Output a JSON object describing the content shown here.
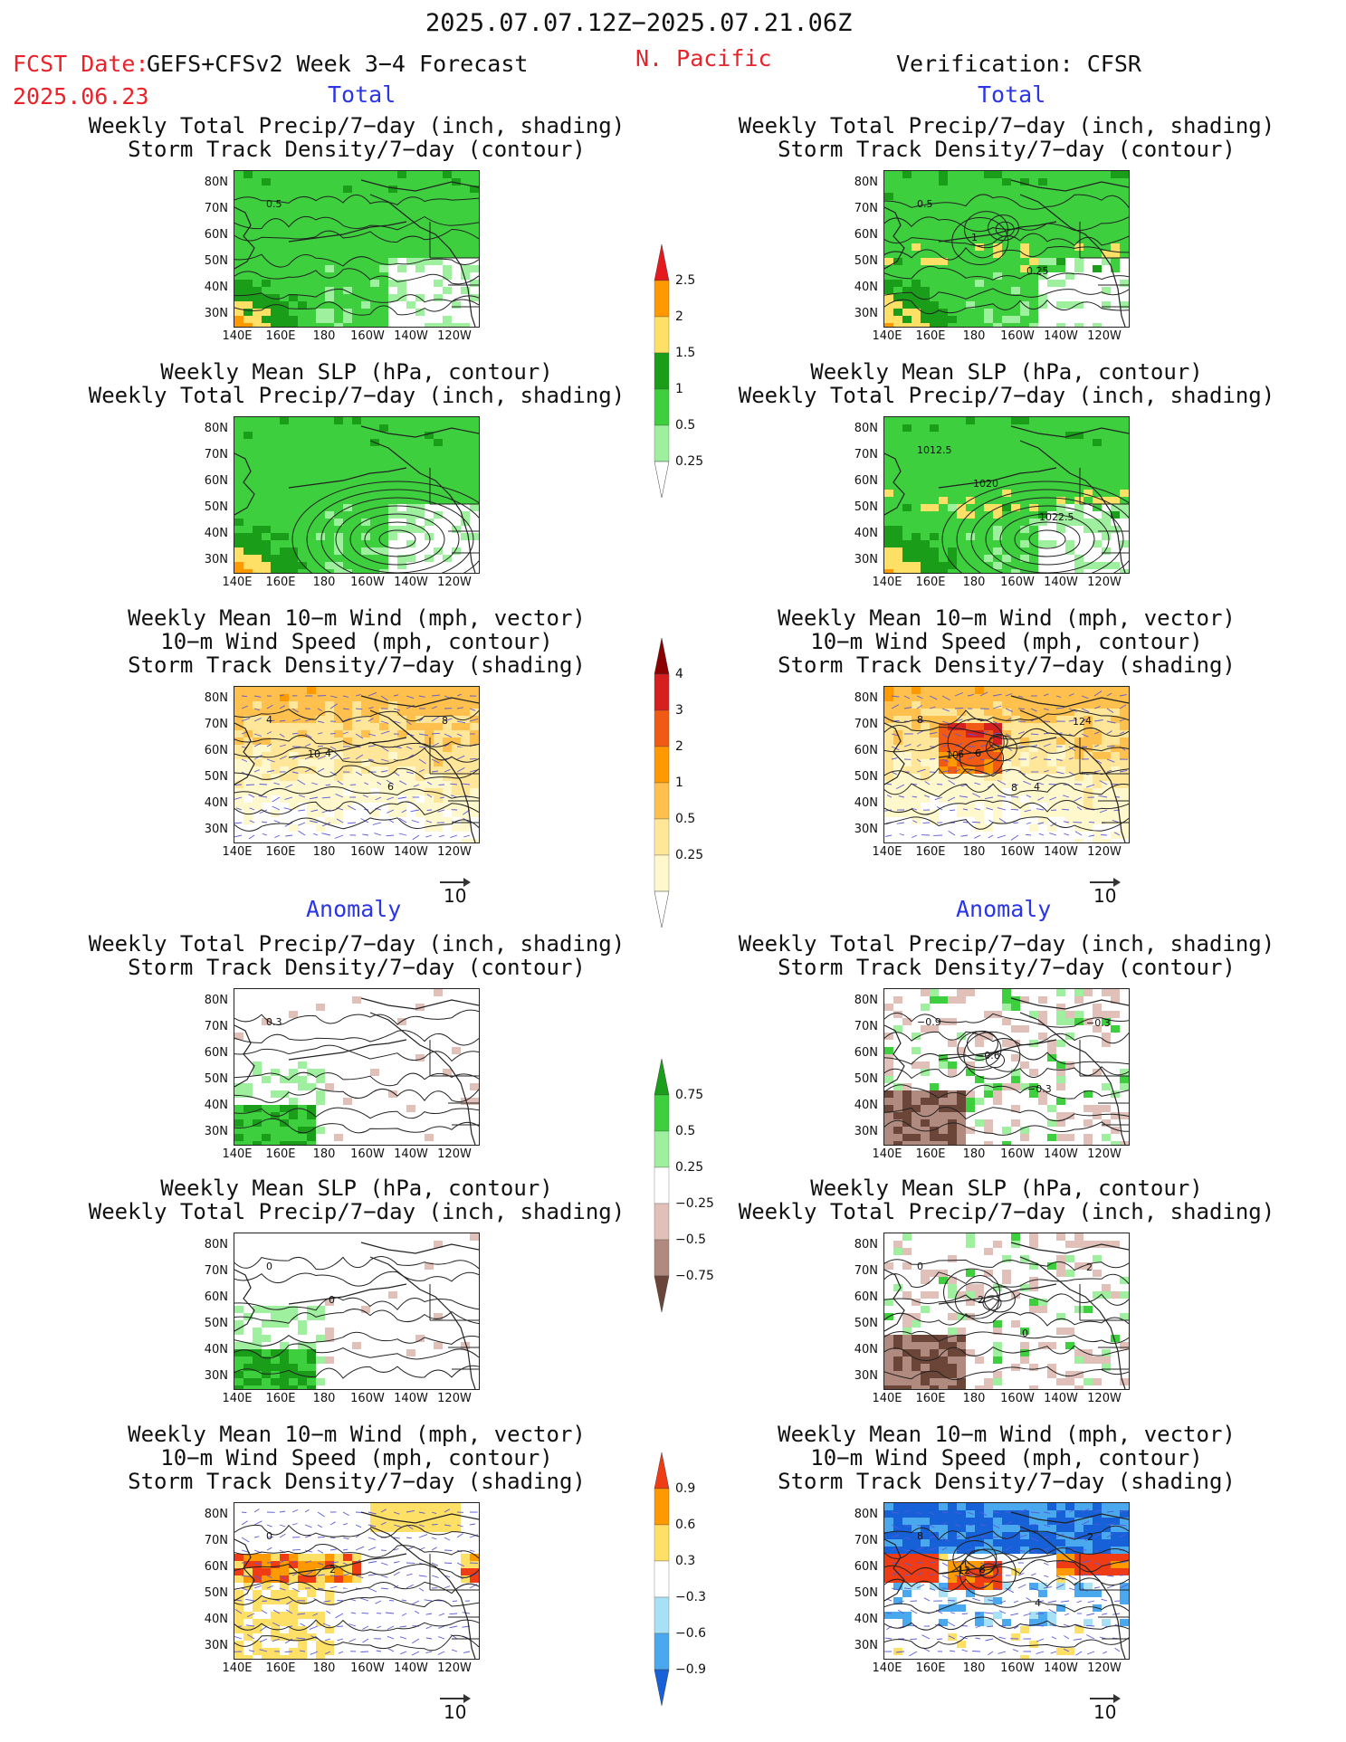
{
  "header": {
    "date_range": "2025.07.07.12Z−2025.07.21.06Z",
    "fcst_label": "FCST Date:",
    "model": "GEFS+CFSv2 Week 3−4 Forecast",
    "fcst_date": "2025.06.23",
    "region": "N. Pacific",
    "verification": "Verification: CFSR"
  },
  "sections": {
    "total": "Total",
    "anomaly": "Anomaly"
  },
  "titles": {
    "precip_storm": [
      "Weekly Total Precip/7−day (inch, shading)",
      "Storm Track Density/7−day (contour)"
    ],
    "slp_precip": [
      "Weekly Mean SLP (hPa, contour)",
      "Weekly Total Precip/7−day (inch, shading)"
    ],
    "wind_storm": [
      "Weekly Mean 10−m Wind (mph, vector)",
      "10−m Wind Speed (mph, contour)",
      "Storm Track Density/7−day (shading)"
    ]
  },
  "axes": {
    "lat_ticks": [
      "80N",
      "70N",
      "60N",
      "50N",
      "40N",
      "30N"
    ],
    "lon_ticks": [
      "140E",
      "160E",
      "180",
      "160W",
      "140W",
      "120W"
    ]
  },
  "vector_ref": "10",
  "colorbars": {
    "precip_total": {
      "labels": [
        "2.5",
        "2",
        "1.5",
        "1",
        "0.5",
        "0.25"
      ],
      "colors": [
        "#e41a1c",
        "#ff9900",
        "#ffe066",
        "#1a9e1a",
        "#3ecf3e",
        "#9ef09e",
        "#ffffff"
      ]
    },
    "storm_total": {
      "labels": [
        "4",
        "3",
        "2",
        "1",
        "0.5",
        "0.25"
      ],
      "colors": [
        "#8b0000",
        "#d62020",
        "#f05a14",
        "#ff9900",
        "#ffc04d",
        "#ffe699",
        "#fff8cc",
        "#ffffff"
      ]
    },
    "precip_anom": {
      "labels": [
        "0.75",
        "0.5",
        "0.25",
        "−0.25",
        "−0.5",
        "−0.75"
      ],
      "colors": [
        "#1a9e1a",
        "#3ecf3e",
        "#9ef09e",
        "#ffffff",
        "#e0c0b8",
        "#b08a7e",
        "#6b4638"
      ]
    },
    "storm_anom": {
      "labels": [
        "0.9",
        "0.6",
        "0.3",
        "−0.3",
        "−0.6",
        "−0.9"
      ],
      "colors": [
        "#f03c14",
        "#ff9900",
        "#ffe066",
        "#ffffff",
        "#a8e0f5",
        "#4aa8ee",
        "#1660d8"
      ]
    }
  },
  "contour_labels": {
    "fcst_total_storm": [
      "0.5"
    ],
    "verif_total_storm": [
      "0.5",
      "1",
      "0.25"
    ],
    "verif_total_slp": [
      "1012.5",
      "1020",
      "1022.5"
    ],
    "fcst_total_wind": [
      "4",
      "4",
      "6",
      "8",
      "10"
    ],
    "verif_total_wind": [
      "8",
      "6",
      "4",
      "4",
      "6",
      "8",
      "12",
      "10"
    ],
    "fcst_anom_storm": [
      "0.3"
    ],
    "verif_anom_storm": [
      "−0.9",
      "−0.6",
      "−0.3",
      "−0.3"
    ],
    "fcst_anom_slp": [
      "0",
      "0"
    ],
    "verif_anom_slp": [
      "0",
      "2",
      "0",
      "2"
    ],
    "fcst_anom_wind": [
      "0",
      "2"
    ],
    "verif_anom_wind": [
      "8",
      "8",
      "4",
      "2",
      "12"
    ]
  },
  "chart_data": [
    {
      "type": "heatmap",
      "panel": "forecast-total-precip-storm",
      "title": "Weekly Total Precip/7-day (inch, shading)",
      "subtitle": "Storm Track Density/7-day (contour)",
      "x": "longitude 140E-120W",
      "y": "latitude 25N-85N"
    },
    {
      "type": "heatmap",
      "panel": "forecast-total-slp-precip",
      "title": "Weekly Mean SLP (hPa, contour)",
      "subtitle": "Weekly Total Precip/7-day (inch, shading)"
    },
    {
      "type": "heatmap",
      "panel": "forecast-total-wind-storm",
      "title": "Weekly Mean 10-m Wind (mph, vector)",
      "subtitle": "10-m Wind Speed (mph, contour) / Storm Track Density/7-day (shading)"
    },
    {
      "type": "heatmap",
      "panel": "forecast-anomaly-precip-storm"
    },
    {
      "type": "heatmap",
      "panel": "forecast-anomaly-slp-precip"
    },
    {
      "type": "heatmap",
      "panel": "forecast-anomaly-wind-storm"
    },
    {
      "type": "heatmap",
      "panel": "verification-total-precip-storm"
    },
    {
      "type": "heatmap",
      "panel": "verification-total-slp-precip"
    },
    {
      "type": "heatmap",
      "panel": "verification-total-wind-storm"
    },
    {
      "type": "heatmap",
      "panel": "verification-anomaly-precip-storm"
    },
    {
      "type": "heatmap",
      "panel": "verification-anomaly-slp-precip"
    },
    {
      "type": "heatmap",
      "panel": "verification-anomaly-wind-storm"
    }
  ]
}
